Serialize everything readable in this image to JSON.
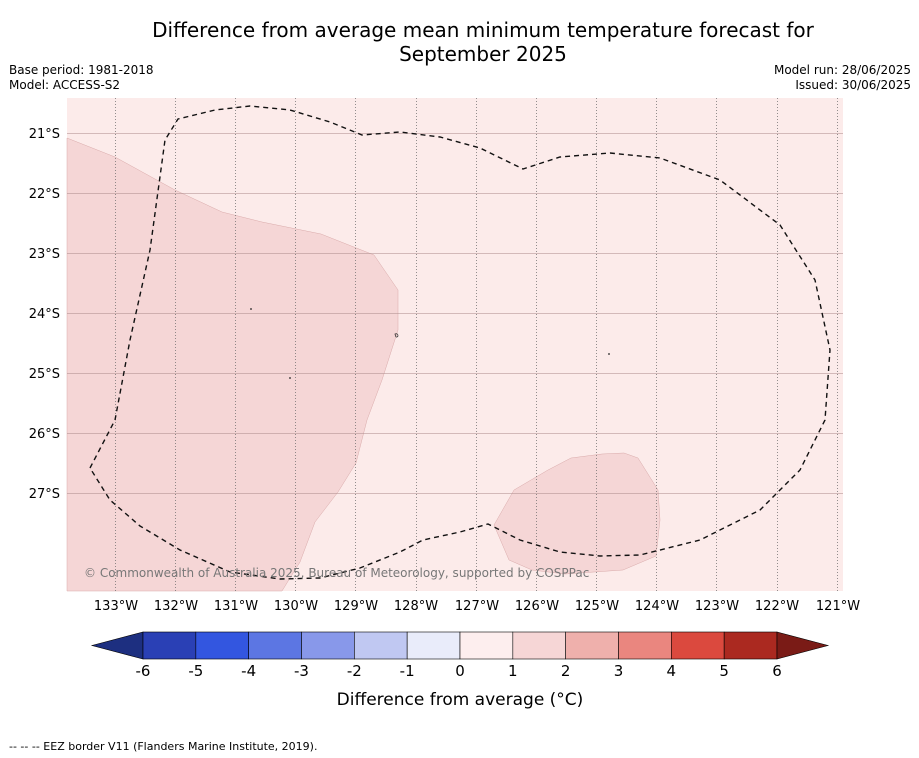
{
  "title_line1": "Difference from average mean minimum temperature forecast for",
  "title_line2": "September 2025",
  "base_period": "Base period: 1981-2018",
  "model": "Model: ACCESS-S2",
  "model_run": "Model run: 28/06/2025",
  "issued": "Issued: 30/06/2025",
  "copyright": "© Commonwealth of Australia 2025, Bureau of Meteorology, supported by COSPPac",
  "footnote": "--  --  -- EEZ border V11 (Flanders Marine Institute, 2019).",
  "map": {
    "lon_labels": [
      "133°W",
      "132°W",
      "131°W",
      "130°W",
      "129°W",
      "128°W",
      "127°W",
      "126°W",
      "125°W",
      "124°W",
      "123°W",
      "122°W",
      "121°W"
    ],
    "lat_labels": [
      "21°S",
      "22°S",
      "23°S",
      "24°S",
      "25°S",
      "26°S",
      "27°S"
    ],
    "background_category": "0 to 1",
    "colors": {
      "bin_0_1": "#fcebea",
      "bin_1_2": "#f5d6d6"
    }
  },
  "colorbar": {
    "label": "Difference from average (°C)",
    "ticks": [
      "-6",
      "-5",
      "-4",
      "-3",
      "-2",
      "-1",
      "0",
      "1",
      "2",
      "3",
      "4",
      "5",
      "6"
    ],
    "colors": [
      "#1d2f80",
      "#2a40b5",
      "#3356e0",
      "#5c76e3",
      "#8898ea",
      "#c0c8f2",
      "#e9ecfa",
      "#fdeeee",
      "#f6d6d6",
      "#efb0ac",
      "#ea867f",
      "#db493e",
      "#ab2920",
      "#7a1b16"
    ]
  }
}
